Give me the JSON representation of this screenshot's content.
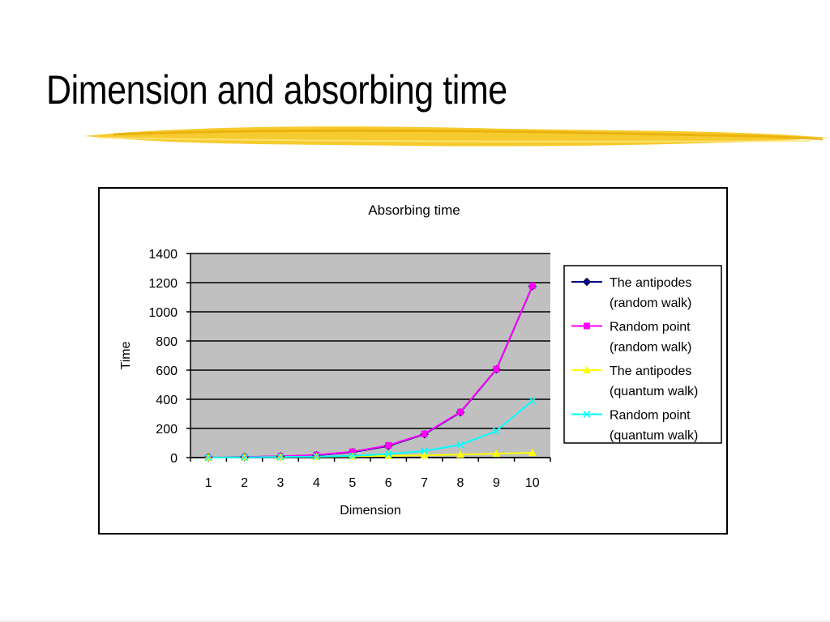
{
  "slide": {
    "title": "Dimension and absorbing time",
    "accent_color": "#f5c518"
  },
  "chart_data": {
    "type": "line",
    "title": "Absorbing time",
    "xlabel": "Dimension",
    "ylabel": "Time",
    "categories": [
      "1",
      "2",
      "3",
      "4",
      "5",
      "6",
      "7",
      "8",
      "9",
      "10"
    ],
    "ylim": [
      0,
      1400
    ],
    "yticks": [
      0,
      200,
      400,
      600,
      800,
      1000,
      1200,
      1400
    ],
    "grid": true,
    "plot_background": "#c0c0c0",
    "legend_position": "right",
    "series": [
      {
        "name": "The antipodes (random walk)",
        "legend_lines": [
          "The antipodes",
          "(random walk)"
        ],
        "color": "#000080",
        "marker": "diamond",
        "values": [
          2,
          4,
          8,
          16,
          37,
          80,
          160,
          310,
          605,
          1175
        ]
      },
      {
        "name": "Random point (random walk)",
        "legend_lines": [
          "Random point",
          "(random walk)"
        ],
        "color": "#ff00ff",
        "marker": "square",
        "values": [
          2,
          4,
          9,
          18,
          40,
          84,
          163,
          313,
          607,
          1178
        ]
      },
      {
        "name": "The antipodes (quantum walk)",
        "legend_lines": [
          "The antipodes",
          "(quantum walk)"
        ],
        "color": "#ffff00",
        "marker": "triangle",
        "values": [
          1,
          2,
          4,
          6,
          9,
          12,
          16,
          21,
          27,
          33
        ]
      },
      {
        "name": "Random point (quantum walk)",
        "legend_lines": [
          "Random point",
          "(quantum walk)"
        ],
        "color": "#00ffff",
        "marker": "x",
        "values": [
          1,
          2,
          4,
          7,
          12,
          25,
          45,
          88,
          183,
          390
        ]
      }
    ]
  }
}
